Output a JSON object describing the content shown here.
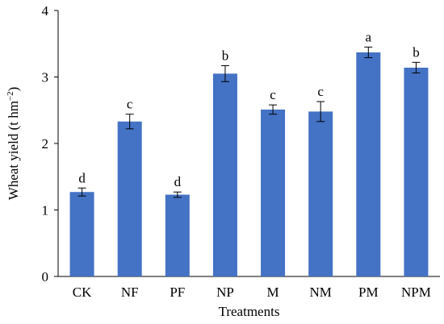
{
  "chart_data": {
    "type": "bar",
    "title": "",
    "xlabel": "Treatments",
    "ylabel_prefix": "Wheat yield (t hm",
    "ylabel_sup": "−2",
    "ylabel_suffix": ")",
    "categories": [
      "CK",
      "NF",
      "PF",
      "NP",
      "M",
      "NM",
      "PM",
      "NPM"
    ],
    "values": [
      1.27,
      2.33,
      1.23,
      3.05,
      2.51,
      2.48,
      3.37,
      3.14
    ],
    "errors": [
      0.06,
      0.11,
      0.04,
      0.12,
      0.07,
      0.15,
      0.08,
      0.08
    ],
    "labels": [
      "d",
      "c",
      "d",
      "b",
      "c",
      "c",
      "a",
      "b"
    ],
    "ylim": [
      0,
      4
    ],
    "yticks": [
      0,
      1,
      2,
      3,
      4
    ],
    "bar_color": "#4472C4",
    "grid": false,
    "legend": "none"
  }
}
